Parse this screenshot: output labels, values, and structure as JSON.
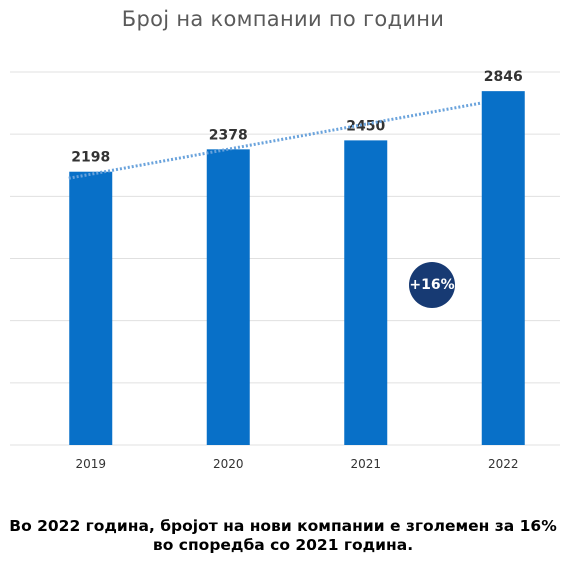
{
  "chart_data": {
    "type": "bar",
    "title": "Број на компании по години",
    "categories": [
      "2019",
      "2020",
      "2021",
      "2022"
    ],
    "values": [
      2198,
      2378,
      2450,
      2846
    ],
    "data_labels": [
      "2198",
      "2378",
      "2450",
      "2846"
    ],
    "ylim": [
      0,
      3000
    ],
    "grid": true,
    "trendline": true,
    "annotation": "+16%"
  },
  "caption": {
    "line1": "Во 2022 година, бројот на нови компании е зголемен за 16%",
    "line2": "во споредба со 2021 година."
  },
  "colors": {
    "bar": "#0870c8",
    "badge": "#173a73",
    "trend": "#6aa3dc",
    "grid": "#e0e0e0"
  }
}
